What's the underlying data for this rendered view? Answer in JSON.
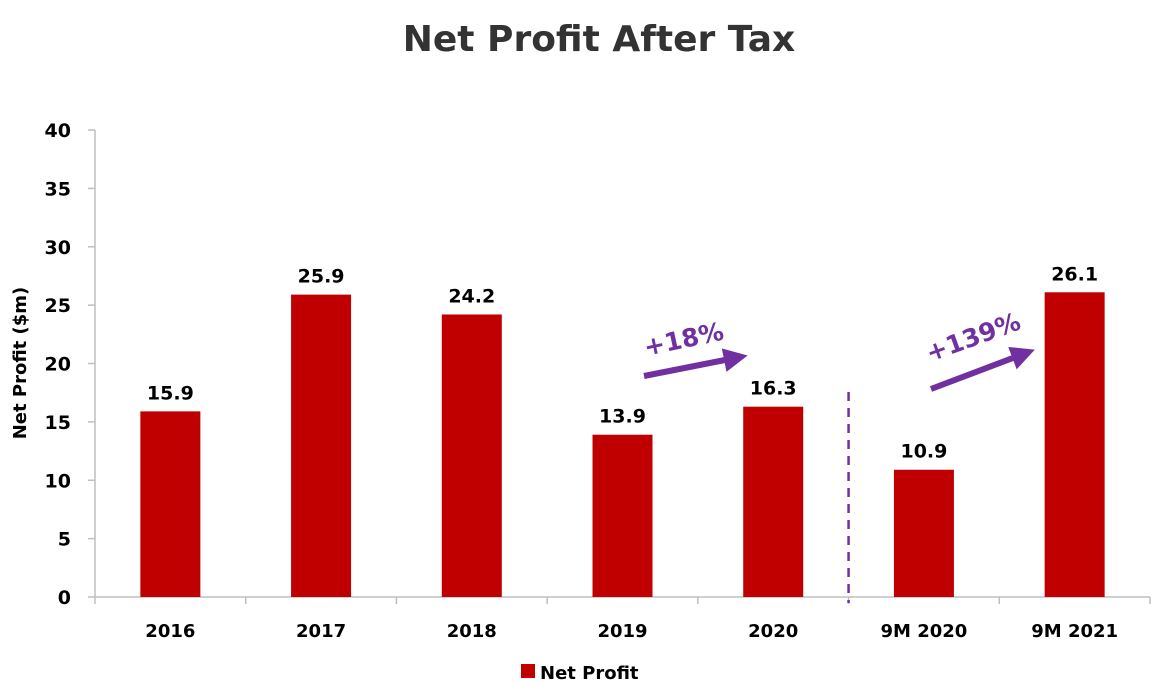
{
  "chart_data": {
    "type": "bar",
    "title": "Net Profit After Tax",
    "xlabel": "",
    "ylabel": "Net Profit ($m)",
    "ylim": [
      0,
      40
    ],
    "yticks": [
      0,
      5,
      10,
      15,
      20,
      25,
      30,
      35,
      40
    ],
    "categories": [
      "2016",
      "2017",
      "2018",
      "2019",
      "2020",
      "9M 2020",
      "9M 2021"
    ],
    "series": [
      {
        "name": "Net Profit",
        "color": "#C00000",
        "values": [
          15.9,
          25.9,
          24.2,
          13.9,
          16.3,
          10.9,
          26.1
        ],
        "labels": [
          "15.9",
          "25.9",
          "24.2",
          "13.9",
          "16.3",
          "10.9",
          "26.1"
        ]
      }
    ],
    "grid": false,
    "legend": {
      "position": "bottom",
      "entries": [
        "Net Profit"
      ]
    },
    "annotations": [
      {
        "text": "+18%",
        "from_category": "2019",
        "to_category": "2020",
        "color": "#7030A0",
        "type": "arrow"
      },
      {
        "text": "+139%",
        "from_category": "9M 2020",
        "to_category": "9M 2021",
        "color": "#7030A0",
        "type": "arrow"
      }
    ],
    "separator": {
      "type": "dashed-line",
      "between": [
        "2020",
        "9M 2020"
      ],
      "color": "#7030A0"
    }
  }
}
